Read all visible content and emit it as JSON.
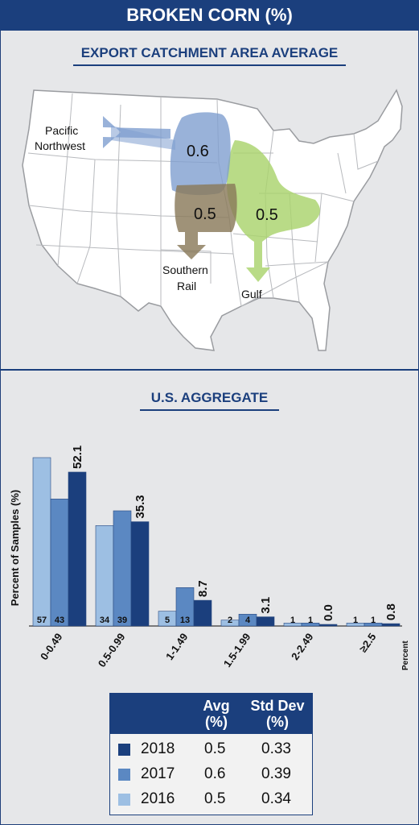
{
  "header": {
    "title": "BROKEN CORN (%)"
  },
  "map_section": {
    "subtitle": "EXPORT CATCHMENT AREA AVERAGE",
    "regions": [
      {
        "name_line1": "Pacific",
        "name_line2": "Northwest",
        "value": "0.6",
        "color": "#7f9fcf"
      },
      {
        "name_line1": "Southern",
        "name_line2": "Rail",
        "value": "0.5",
        "color": "#8a7a5a"
      },
      {
        "name_line1": "Gulf",
        "name_line2": "",
        "value": "0.5",
        "color": "#a9d36c"
      }
    ]
  },
  "chart_section": {
    "subtitle": "U.S. AGGREGATE"
  },
  "chart_data": {
    "type": "bar",
    "ylabel": "Percent of Samples (%)",
    "xlabel": "Percent",
    "categories": [
      "0-0.49",
      "0.5-0.99",
      "1-1.49",
      "1.5-1.99",
      "2-2.49",
      "≥2.5"
    ],
    "series": [
      {
        "name": "2016",
        "color": "#9dbfe3",
        "values": [
          57,
          34,
          5,
          2,
          1,
          1
        ],
        "labels": [
          "57",
          "34",
          "5",
          "2",
          "1",
          "1"
        ]
      },
      {
        "name": "2017",
        "color": "#5b88c2",
        "values": [
          43,
          39,
          13,
          4,
          1,
          1
        ],
        "labels": [
          "43",
          "39",
          "13",
          "4",
          "1",
          "1"
        ]
      },
      {
        "name": "2018",
        "color": "#1b3f7d",
        "values": [
          52.1,
          35.3,
          8.7,
          3.1,
          0.0,
          0.8
        ],
        "labels": [
          "52.1",
          "35.3",
          "8.7",
          "3.1",
          "0.0",
          "0.8"
        ]
      }
    ],
    "ylim": [
      0,
      60
    ],
    "grid": false
  },
  "legend": {
    "col_avg_line1": "Avg",
    "col_avg_line2": "(%)",
    "col_sd_line1": "Std Dev",
    "col_sd_line2": "(%)",
    "rows": [
      {
        "year": "2018",
        "avg": "0.5",
        "sd": "0.33",
        "color": "#1b3f7d"
      },
      {
        "year": "2017",
        "avg": "0.6",
        "sd": "0.39",
        "color": "#5b88c2"
      },
      {
        "year": "2016",
        "avg": "0.5",
        "sd": "0.34",
        "color": "#9dbfe3"
      }
    ]
  }
}
